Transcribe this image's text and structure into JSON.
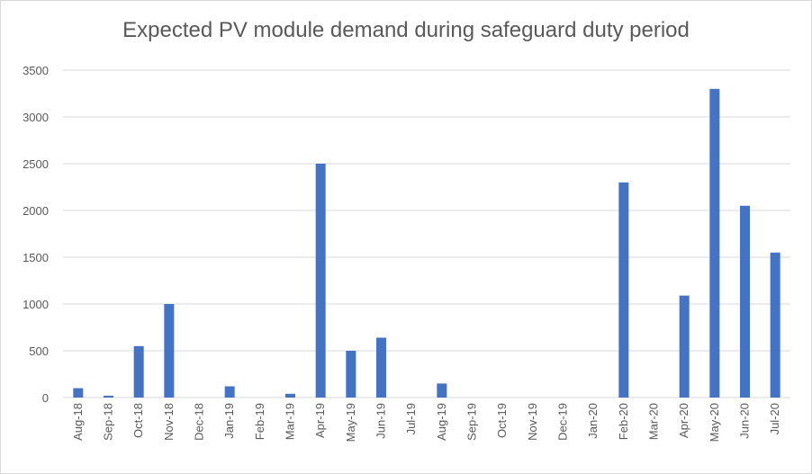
{
  "chart_data": {
    "type": "bar",
    "title": "Expected PV module demand during safeguard duty period",
    "xlabel": "",
    "ylabel": "",
    "categories": [
      "Aug-18",
      "Sep-18",
      "Oct-18",
      "Nov-18",
      "Dec-18",
      "Jan-19",
      "Feb-19",
      "Mar-19",
      "Apr-19",
      "May-19",
      "Jun-19",
      "Jul-19",
      "Aug-19",
      "Sep-19",
      "Oct-19",
      "Nov-19",
      "Dec-19",
      "Jan-20",
      "Feb-20",
      "Mar-20",
      "Apr-20",
      "May-20",
      "Jun-20",
      "Jul-20"
    ],
    "values": [
      100,
      20,
      550,
      1000,
      0,
      120,
      0,
      40,
      2500,
      500,
      640,
      0,
      150,
      0,
      0,
      0,
      0,
      0,
      2300,
      0,
      1090,
      3300,
      2050,
      1550
    ],
    "ylim": [
      0,
      3500
    ],
    "yticks": [
      0,
      500,
      1000,
      1500,
      2000,
      2500,
      3000,
      3500
    ],
    "grid": true,
    "legend": "none",
    "bar_color": "#4472c4",
    "grid_color": "#d9d9d9"
  }
}
